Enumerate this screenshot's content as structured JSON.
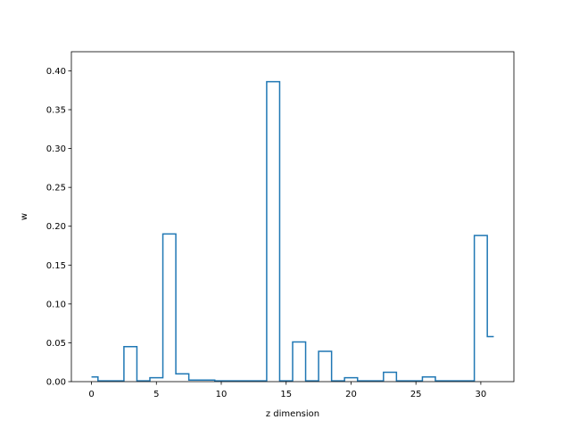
{
  "chart_data": {
    "type": "step",
    "title": "",
    "xlabel": "z dimension",
    "ylabel": "w",
    "xlim": [
      -1.55,
      32.55
    ],
    "ylim": [
      0,
      0.4246
    ],
    "xticks": [
      0,
      5,
      10,
      15,
      20,
      25,
      30
    ],
    "yticks": [
      0.0,
      0.05,
      0.1,
      0.15,
      0.2,
      0.25,
      0.3,
      0.35,
      0.4
    ],
    "ytick_labels": [
      "0.00",
      "0.05",
      "0.10",
      "0.15",
      "0.20",
      "0.25",
      "0.30",
      "0.35",
      "0.40"
    ],
    "xtick_labels": [
      "0",
      "5",
      "10",
      "15",
      "20",
      "25",
      "30"
    ],
    "step_where": "mid",
    "grid": false,
    "line_color": "#1f77b4",
    "series": [
      {
        "x": [
          0,
          1,
          2,
          3,
          4,
          5,
          6,
          7,
          8,
          9,
          10,
          11,
          12,
          13,
          14,
          15,
          16,
          17,
          18,
          19,
          20,
          21,
          22,
          23,
          24,
          25,
          26,
          27,
          28,
          29,
          30,
          31
        ],
        "values": [
          0.006,
          0.001,
          0.001,
          0.045,
          0.001,
          0.005,
          0.19,
          0.01,
          0.002,
          0.002,
          0.001,
          0.001,
          0.001,
          0.001,
          0.386,
          0.001,
          0.051,
          0.001,
          0.039,
          0.001,
          0.005,
          0.001,
          0.001,
          0.012,
          0.001,
          0.001,
          0.006,
          0.001,
          0.001,
          0.001,
          0.188,
          0.058
        ]
      }
    ]
  }
}
